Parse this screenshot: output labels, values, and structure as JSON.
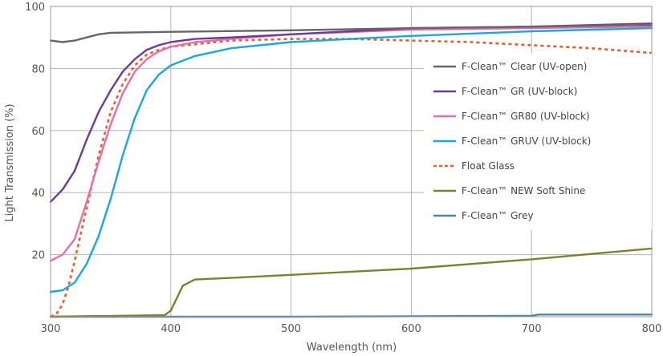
{
  "chart_data": {
    "type": "line",
    "title": "",
    "xlabel": "Wavelength (nm)",
    "ylabel": "Light Transmission (%)",
    "xlim": [
      300,
      800
    ],
    "ylim": [
      0,
      100
    ],
    "x_ticks": [
      300,
      400,
      500,
      600,
      700,
      800
    ],
    "x_tick_labels": [
      "300",
      "400",
      "500",
      "600",
      "700",
      "800"
    ],
    "y_ticks": [
      20,
      40,
      60,
      80,
      100
    ],
    "y_tick_labels": [
      "20",
      "40",
      "60",
      "80",
      "100"
    ],
    "grid": true,
    "legend_position": "right",
    "series": [
      {
        "name": "F-Clean™ Clear (UV-open)",
        "color": "#666666",
        "style": "solid",
        "points": [
          [
            300,
            89
          ],
          [
            310,
            88.5
          ],
          [
            320,
            89
          ],
          [
            330,
            90
          ],
          [
            340,
            91
          ],
          [
            350,
            91.5
          ],
          [
            400,
            91.8
          ],
          [
            500,
            92.3
          ],
          [
            600,
            93
          ],
          [
            700,
            93.5
          ],
          [
            780,
            94
          ],
          [
            800,
            94
          ]
        ]
      },
      {
        "name": "F-Clean™ GR (UV-block)",
        "color": "#6b3c97",
        "style": "solid",
        "points": [
          [
            300,
            37
          ],
          [
            310,
            41
          ],
          [
            320,
            47
          ],
          [
            330,
            57
          ],
          [
            340,
            66
          ],
          [
            350,
            73
          ],
          [
            360,
            79
          ],
          [
            370,
            83
          ],
          [
            380,
            86
          ],
          [
            390,
            87.5
          ],
          [
            400,
            88.5
          ],
          [
            420,
            89.5
          ],
          [
            450,
            90
          ],
          [
            500,
            91
          ],
          [
            600,
            93
          ],
          [
            700,
            93.5
          ],
          [
            800,
            94.5
          ]
        ]
      },
      {
        "name": "F-Clean™ GR80 (UV-block)",
        "color": "#e56fae",
        "style": "solid",
        "points": [
          [
            300,
            18
          ],
          [
            310,
            20
          ],
          [
            320,
            25
          ],
          [
            330,
            37
          ],
          [
            340,
            50
          ],
          [
            350,
            62
          ],
          [
            360,
            72
          ],
          [
            370,
            79
          ],
          [
            380,
            83
          ],
          [
            390,
            85.5
          ],
          [
            400,
            87
          ],
          [
            420,
            88.5
          ],
          [
            450,
            89.5
          ],
          [
            500,
            91
          ],
          [
            600,
            92.5
          ],
          [
            700,
            93
          ],
          [
            800,
            93.5
          ]
        ]
      },
      {
        "name": "F-Clean™ GRUV (UV-block)",
        "color": "#1aa7e0",
        "style": "solid",
        "points": [
          [
            300,
            8
          ],
          [
            310,
            8.5
          ],
          [
            320,
            11
          ],
          [
            330,
            17
          ],
          [
            340,
            26
          ],
          [
            350,
            38
          ],
          [
            360,
            52
          ],
          [
            370,
            64
          ],
          [
            380,
            73
          ],
          [
            390,
            78
          ],
          [
            400,
            81
          ],
          [
            420,
            84
          ],
          [
            450,
            86.5
          ],
          [
            500,
            88.5
          ],
          [
            550,
            89.5
          ],
          [
            600,
            90.5
          ],
          [
            700,
            92
          ],
          [
            800,
            93
          ]
        ]
      },
      {
        "name": "Float Glass",
        "color": "#e4602c",
        "style": "dashed",
        "points": [
          [
            300,
            0
          ],
          [
            305,
            1
          ],
          [
            310,
            4
          ],
          [
            315,
            10
          ],
          [
            320,
            18
          ],
          [
            330,
            35
          ],
          [
            340,
            52
          ],
          [
            350,
            66
          ],
          [
            360,
            75
          ],
          [
            370,
            81
          ],
          [
            380,
            84.5
          ],
          [
            390,
            86
          ],
          [
            400,
            87
          ],
          [
            450,
            89
          ],
          [
            500,
            89.5
          ],
          [
            550,
            89.5
          ],
          [
            600,
            89
          ],
          [
            650,
            88.5
          ],
          [
            700,
            87.5
          ],
          [
            750,
            86.5
          ],
          [
            800,
            85
          ]
        ]
      },
      {
        "name": "F-Clean™ NEW Soft Shine",
        "color": "#7f7f30",
        "style": "solid",
        "points": [
          [
            300,
            0
          ],
          [
            395,
            0.5
          ],
          [
            400,
            2
          ],
          [
            405,
            6
          ],
          [
            410,
            10
          ],
          [
            420,
            12
          ],
          [
            450,
            12.5
          ],
          [
            500,
            13.5
          ],
          [
            600,
            15.5
          ],
          [
            700,
            18.5
          ],
          [
            800,
            22
          ]
        ]
      },
      {
        "name": "F-Clean™ Grey",
        "color": "#4f86a8",
        "style": "solid",
        "points": [
          [
            300,
            0
          ],
          [
            500,
            0
          ],
          [
            700,
            0.3
          ],
          [
            706,
            0.7
          ],
          [
            800,
            0.7
          ]
        ]
      }
    ]
  }
}
